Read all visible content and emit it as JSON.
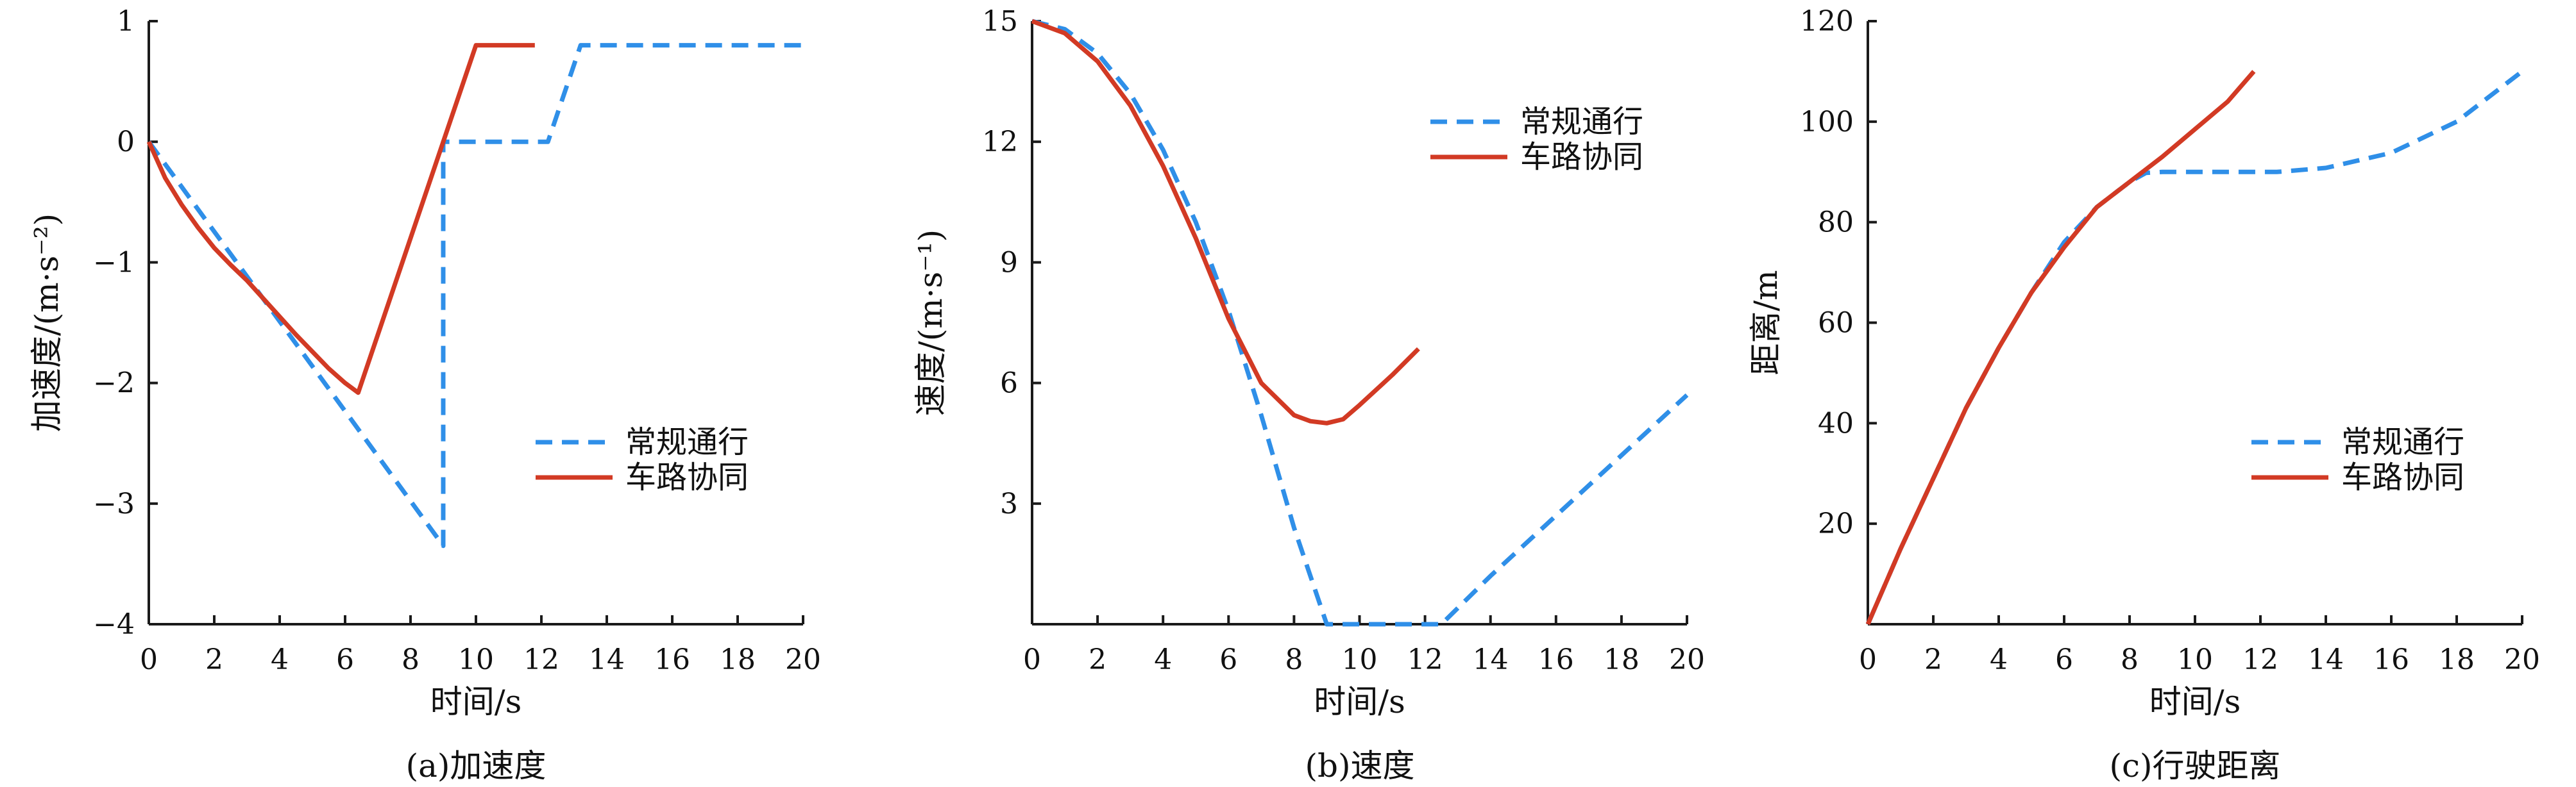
{
  "figure": {
    "panels": [
      "acceleration",
      "speed",
      "distance"
    ]
  },
  "legend": {
    "conventional": "常规通行",
    "cooperative": "车路协同"
  },
  "colors": {
    "conventional": "#2f8fe8",
    "cooperative": "#d23a24",
    "axis": "#1a1a1a"
  },
  "chart_data": [
    {
      "type": "line",
      "title": "",
      "caption": "(a)加速度",
      "xlabel": "时间/s",
      "ylabel": "加速度/(m·s⁻²)",
      "xlim": [
        0,
        20
      ],
      "ylim": [
        -4,
        1
      ],
      "xticks": [
        0,
        2,
        4,
        6,
        8,
        10,
        12,
        14,
        16,
        18,
        20
      ],
      "yticks": [
        -4,
        -3,
        -2,
        -1,
        0,
        1
      ],
      "xtick_labels": [
        "0",
        "2",
        "4",
        "6",
        "8",
        "10",
        "12",
        "14",
        "16",
        "18",
        "20"
      ],
      "ytick_labels": [
        "−4",
        "−3",
        "−2",
        "−1",
        "0",
        "1"
      ],
      "legend_position": "center-right",
      "grid": false,
      "series": [
        {
          "name": "常规通行",
          "style": "dashed",
          "x": [
            0,
            9.0,
            9.0,
            12.2,
            13.2,
            20
          ],
          "y": [
            0,
            -3.35,
            0,
            0,
            0.8,
            0.8
          ]
        },
        {
          "name": "车路协同",
          "style": "solid",
          "x": [
            0,
            0.5,
            1.0,
            1.5,
            2.0,
            2.5,
            3.0,
            3.5,
            4.0,
            4.5,
            5.0,
            5.5,
            6.0,
            6.4,
            9.0,
            10.0,
            11.8
          ],
          "y": [
            0,
            -0.3,
            -0.52,
            -0.71,
            -0.88,
            -1.02,
            -1.15,
            -1.3,
            -1.45,
            -1.6,
            -1.74,
            -1.88,
            -2.0,
            -2.08,
            0,
            0.8,
            0.8
          ]
        }
      ]
    },
    {
      "type": "line",
      "title": "",
      "caption": "(b)速度",
      "xlabel": "时间/s",
      "ylabel": "速度/(m·s⁻¹)",
      "xlim": [
        0,
        20
      ],
      "ylim": [
        0,
        15
      ],
      "xticks": [
        0,
        2,
        4,
        6,
        8,
        10,
        12,
        14,
        16,
        18,
        20
      ],
      "yticks": [
        3,
        6,
        9,
        12,
        15
      ],
      "xtick_labels": [
        "0",
        "2",
        "4",
        "6",
        "8",
        "10",
        "12",
        "14",
        "16",
        "18",
        "20"
      ],
      "ytick_labels": [
        "3",
        "6",
        "9",
        "12",
        "15"
      ],
      "legend_position": "top-right",
      "grid": false,
      "series": [
        {
          "name": "常规通行",
          "style": "dashed",
          "x": [
            0,
            1,
            2,
            3,
            4,
            5,
            6,
            7,
            8,
            9,
            10,
            11,
            12,
            12.5,
            14,
            16,
            18,
            20
          ],
          "y": [
            15,
            14.8,
            14.2,
            13.2,
            11.8,
            10.0,
            7.8,
            5.2,
            2.4,
            0,
            0,
            0,
            0,
            0,
            1.2,
            2.7,
            4.2,
            5.7
          ]
        },
        {
          "name": "车路协同",
          "style": "solid",
          "x": [
            0,
            1,
            2,
            3,
            4,
            5,
            6,
            7,
            8,
            8.5,
            9,
            9.5,
            10,
            11,
            11.8
          ],
          "y": [
            15,
            14.7,
            14.0,
            12.9,
            11.4,
            9.6,
            7.6,
            6.0,
            5.2,
            5.05,
            5.0,
            5.1,
            5.45,
            6.2,
            6.85
          ]
        }
      ]
    },
    {
      "type": "line",
      "title": "",
      "caption": "(c)行驶距离",
      "xlabel": "时间/s",
      "ylabel": "距离/m",
      "xlim": [
        0,
        20
      ],
      "ylim": [
        0,
        120
      ],
      "xticks": [
        0,
        2,
        4,
        6,
        8,
        10,
        12,
        14,
        16,
        18,
        20
      ],
      "yticks": [
        20,
        40,
        60,
        80,
        100,
        120
      ],
      "xtick_labels": [
        "0",
        "2",
        "4",
        "6",
        "8",
        "10",
        "12",
        "14",
        "16",
        "18",
        "20"
      ],
      "ytick_labels": [
        "20",
        "40",
        "60",
        "80",
        "100",
        "120"
      ],
      "legend_position": "center-right",
      "grid": false,
      "series": [
        {
          "name": "常规通行",
          "style": "dashed",
          "x": [
            0,
            1,
            2,
            3,
            4,
            5,
            6,
            7,
            8,
            8.5,
            9,
            10,
            11,
            12,
            12.5,
            14,
            16,
            18,
            20
          ],
          "y": [
            0,
            15,
            29,
            43,
            55,
            66,
            76,
            83,
            88,
            89.8,
            90,
            90,
            90,
            90,
            90,
            90.8,
            93.8,
            100,
            110
          ]
        },
        {
          "name": "车路协同",
          "style": "solid",
          "x": [
            0,
            1,
            2,
            3,
            4,
            5,
            6,
            7,
            8,
            9,
            10,
            11,
            11.8
          ],
          "y": [
            0,
            15,
            29,
            43,
            55,
            66,
            75,
            83,
            88,
            93,
            98.5,
            104,
            110
          ]
        }
      ]
    }
  ]
}
